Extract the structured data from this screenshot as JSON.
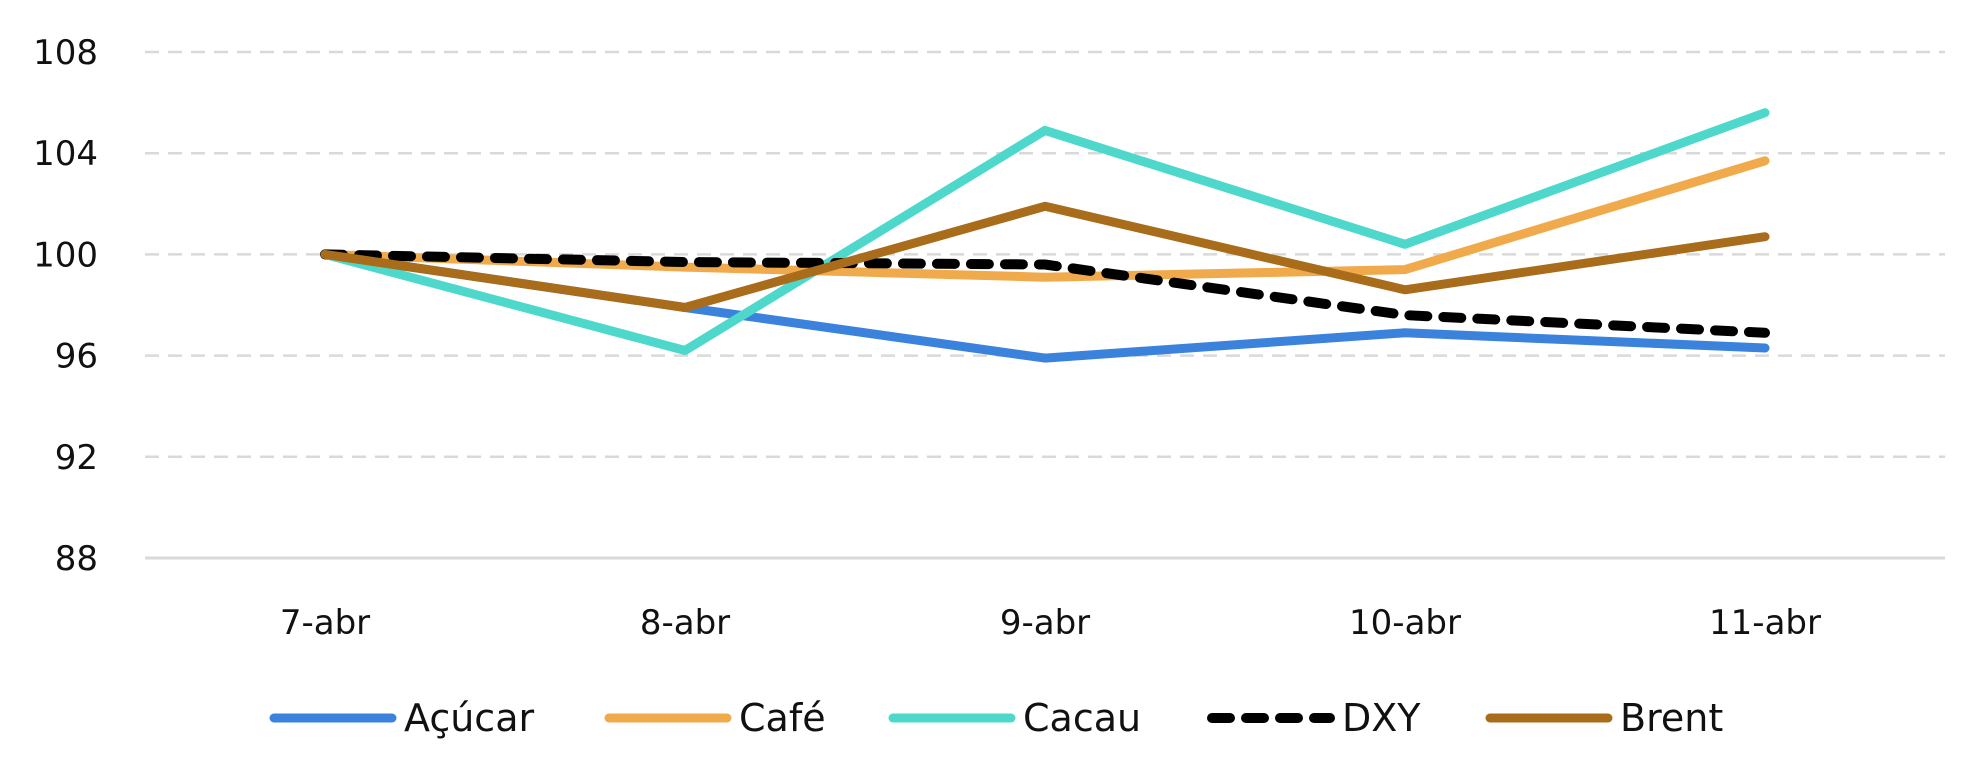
{
  "chart_data": {
    "type": "line",
    "title": "",
    "xlabel": "",
    "ylabel": "",
    "categories": [
      "7-abr",
      "8-abr",
      "9-abr",
      "10-abr",
      "11-abr"
    ],
    "y_ticks": [
      "88",
      "92",
      "96",
      "100",
      "104",
      "108"
    ],
    "ylim": [
      88,
      108
    ],
    "grid": "horizontal dashed",
    "legend_position": "bottom",
    "series": [
      {
        "name": "Açúcar",
        "values": [
          100.0,
          97.9,
          95.9,
          96.9,
          96.3
        ],
        "color": "#3B82DC",
        "style": "solid"
      },
      {
        "name": "Café",
        "values": [
          100.0,
          99.5,
          99.1,
          99.4,
          103.7
        ],
        "color": "#F0AA4C",
        "style": "solid"
      },
      {
        "name": "Cacau",
        "values": [
          100.0,
          96.2,
          104.9,
          100.4,
          105.6
        ],
        "color": "#4ED8CC",
        "style": "solid"
      },
      {
        "name": "DXY",
        "values": [
          100.0,
          99.7,
          99.6,
          97.6,
          96.9
        ],
        "color": "#000000",
        "style": "dashed"
      },
      {
        "name": "Brent",
        "values": [
          100.0,
          97.9,
          101.9,
          98.6,
          100.7
        ],
        "color": "#A86C1B",
        "style": "solid"
      }
    ]
  }
}
